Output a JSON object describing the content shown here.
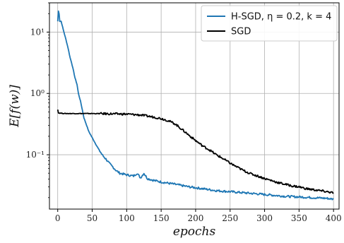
{
  "chart_data": {
    "type": "line",
    "xlabel": "epochs",
    "ylabel": "E[f(w)]",
    "xlim": [
      -12,
      408
    ],
    "ylim": [
      0.013,
      30
    ],
    "yscale": "log",
    "grid": true,
    "legend_position": "top-right",
    "x_ticks": [
      0,
      50,
      100,
      150,
      200,
      250,
      300,
      350,
      400
    ],
    "y_ticks": [
      {
        "value": 10,
        "label": "10¹"
      },
      {
        "value": 1,
        "label": "10⁰"
      },
      {
        "value": 0.1,
        "label": "10⁻¹"
      }
    ],
    "series": [
      {
        "name": "H-SGD, η = 0.2, k = 4",
        "color": "#1f77b4",
        "points": [
          [
            0,
            15
          ],
          [
            1,
            22
          ],
          [
            2,
            20
          ],
          [
            3,
            15
          ],
          [
            5,
            15
          ],
          [
            8,
            11
          ],
          [
            12,
            7.5
          ],
          [
            15,
            5.5
          ],
          [
            18,
            3.8
          ],
          [
            20,
            3.2
          ],
          [
            23,
            2.3
          ],
          [
            25,
            1.8
          ],
          [
            28,
            1.4
          ],
          [
            30,
            1.0
          ],
          [
            33,
            0.75
          ],
          [
            36,
            0.52
          ],
          [
            38,
            0.4
          ],
          [
            42,
            0.3
          ],
          [
            45,
            0.24
          ],
          [
            50,
            0.19
          ],
          [
            55,
            0.15
          ],
          [
            60,
            0.12
          ],
          [
            65,
            0.098
          ],
          [
            70,
            0.085
          ],
          [
            75,
            0.072
          ],
          [
            80,
            0.063
          ],
          [
            85,
            0.055
          ],
          [
            90,
            0.05
          ],
          [
            100,
            0.047
          ],
          [
            110,
            0.045
          ],
          [
            115,
            0.05
          ],
          [
            120,
            0.042
          ],
          [
            125,
            0.05
          ],
          [
            130,
            0.041
          ],
          [
            140,
            0.038
          ],
          [
            150,
            0.036
          ],
          [
            170,
            0.033
          ],
          [
            190,
            0.03
          ],
          [
            210,
            0.028
          ],
          [
            230,
            0.026
          ],
          [
            250,
            0.025
          ],
          [
            270,
            0.024
          ],
          [
            290,
            0.023
          ],
          [
            310,
            0.022
          ],
          [
            330,
            0.021
          ],
          [
            350,
            0.0205
          ],
          [
            370,
            0.02
          ],
          [
            390,
            0.0195
          ],
          [
            400,
            0.0188
          ]
        ]
      },
      {
        "name": "SGD",
        "color": "#000000",
        "points": [
          [
            0,
            0.55
          ],
          [
            1,
            0.48
          ],
          [
            10,
            0.47
          ],
          [
            25,
            0.47
          ],
          [
            50,
            0.47
          ],
          [
            75,
            0.465
          ],
          [
            100,
            0.46
          ],
          [
            120,
            0.445
          ],
          [
            140,
            0.41
          ],
          [
            150,
            0.39
          ],
          [
            160,
            0.36
          ],
          [
            170,
            0.32
          ],
          [
            180,
            0.26
          ],
          [
            190,
            0.21
          ],
          [
            200,
            0.17
          ],
          [
            210,
            0.14
          ],
          [
            220,
            0.12
          ],
          [
            230,
            0.1
          ],
          [
            240,
            0.086
          ],
          [
            250,
            0.073
          ],
          [
            260,
            0.063
          ],
          [
            270,
            0.055
          ],
          [
            280,
            0.049
          ],
          [
            290,
            0.045
          ],
          [
            300,
            0.041
          ],
          [
            310,
            0.038
          ],
          [
            320,
            0.035
          ],
          [
            330,
            0.033
          ],
          [
            340,
            0.031
          ],
          [
            350,
            0.03
          ],
          [
            360,
            0.028
          ],
          [
            370,
            0.027
          ],
          [
            380,
            0.026
          ],
          [
            390,
            0.025
          ],
          [
            400,
            0.024
          ]
        ]
      }
    ]
  }
}
